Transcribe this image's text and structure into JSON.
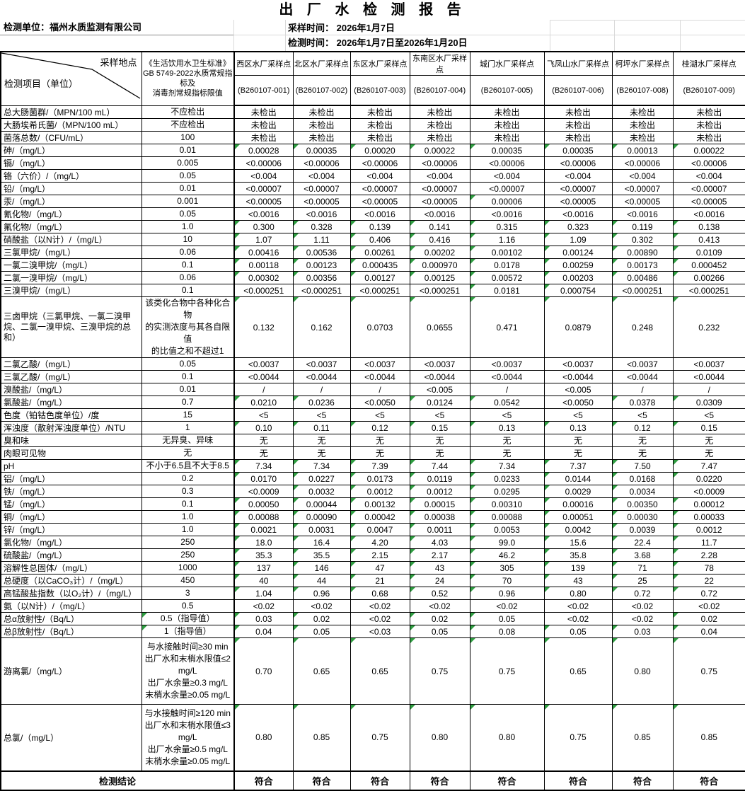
{
  "title": "出 厂 水  检 测 报 告",
  "meta": {
    "unit": "检测单位：福州水质监测有限公司",
    "sampling_time": "采样时间： 2026年1月7日",
    "testing_time": "检测时间： 2026年1月7日至2026年1月20日"
  },
  "header": {
    "corner_top": "采样地点",
    "corner_bottom": "检测项目（单位）",
    "standard": "《生活饮用水卫生标准》\nGB 5749-2022水质常规指标及\n消毒剂常规指标限值",
    "columns": [
      {
        "name": "西区水厂采样点",
        "code": "(B260107-001)"
      },
      {
        "name": "北区水厂采样点",
        "code": "(B260107-002)"
      },
      {
        "name": "东区水厂采样点",
        "code": "(B260107-003)"
      },
      {
        "name": "东南区水厂采样点",
        "code": "(B260107-004)"
      },
      {
        "name": "城门水厂采样点",
        "code": "(B260107-005)"
      },
      {
        "name": "飞凤山水厂采样点",
        "code": "(B260107-006)"
      },
      {
        "name": "柯坪水厂采样点",
        "code": "(B260107-008)"
      },
      {
        "name": "桂湖水厂采样点",
        "code": "(B260107-009)"
      }
    ]
  },
  "rows": [
    {
      "item": "总大肠菌群/（MPN/100 mL）",
      "standard": "不应检出",
      "values": [
        "未检出",
        "未检出",
        "未检出",
        "未检出",
        "未检出",
        "未检出",
        "未检出",
        "未检出"
      ]
    },
    {
      "item": "大肠埃希氏菌/（MPN/100 mL）",
      "standard": "不应检出",
      "values": [
        "未检出",
        "未检出",
        "未检出",
        "未检出",
        "未检出",
        "未检出",
        "未检出",
        "未检出"
      ]
    },
    {
      "item": "菌落总数/（CFU/mL）",
      "standard": "100",
      "values": [
        "未检出",
        "未检出",
        "未检出",
        "未检出",
        "未检出",
        "未检出",
        "未检出",
        "未检出"
      ]
    },
    {
      "item": "砷/（mg/L）",
      "standard": "0.01",
      "values": [
        "0.00028",
        "0.00035",
        "0.00020",
        "0.00022",
        "0.00035",
        "0.00035",
        "0.00013",
        "0.00022"
      ]
    },
    {
      "item": "镉/（mg/L）",
      "standard": "0.005",
      "values": [
        "<0.00006",
        "<0.00006",
        "<0.00006",
        "<0.00006",
        "<0.00006",
        "<0.00006",
        "<0.00006",
        "<0.00006"
      ]
    },
    {
      "item": "铬（六价）/（mg/L）",
      "standard": "0.05",
      "values": [
        "<0.004",
        "<0.004",
        "<0.004",
        "<0.004",
        "<0.004",
        "<0.004",
        "<0.004",
        "<0.004"
      ]
    },
    {
      "item": "铅/（mg/L）",
      "standard": "0.01",
      "values": [
        "<0.00007",
        "<0.00007",
        "<0.00007",
        "<0.00007",
        "<0.00007",
        "<0.00007",
        "<0.00007",
        "<0.00007"
      ]
    },
    {
      "item": "汞/（mg/L）",
      "standard": "0.001",
      "values": [
        "<0.00005",
        "<0.00005",
        "<0.00005",
        "<0.00005",
        "0.00006",
        "<0.00005",
        "<0.00005",
        "<0.00005"
      ]
    },
    {
      "item": "氰化物/（mg/L）",
      "standard": "0.05",
      "values": [
        "<0.0016",
        "<0.0016",
        "<0.0016",
        "<0.0016",
        "<0.0016",
        "<0.0016",
        "<0.0016",
        "<0.0016"
      ]
    },
    {
      "item": "氟化物/（mg/L）",
      "standard": "1.0",
      "values": [
        "0.300",
        "0.328",
        "0.139",
        "0.141",
        "0.315",
        "0.323",
        "0.119",
        "0.138"
      ]
    },
    {
      "item": "硝酸盐（以N计）/（mg/L）",
      "standard": "10",
      "values": [
        "1.07",
        "1.11",
        "0.406",
        "0.416",
        "1.16",
        "1.09",
        "0.302",
        "0.413"
      ]
    },
    {
      "item": "三氯甲烷/（mg/L）",
      "standard": "0.06",
      "values": [
        "0.00416",
        "0.00536",
        "0.00261",
        "0.00202",
        "0.00102",
        "0.00124",
        "0.00890",
        "0.0109"
      ]
    },
    {
      "item": "一氯二溴甲烷/（mg/L）",
      "standard": "0.1",
      "values": [
        "0.00118",
        "0.00123",
        "0.000435",
        "0.000970",
        "0.0178",
        "0.00259",
        "0.00173",
        "0.000452"
      ]
    },
    {
      "item": "二氯一溴甲烷/（mg/L）",
      "standard": "0.06",
      "values": [
        "0.00302",
        "0.00356",
        "0.00127",
        "0.00125",
        "0.00572",
        "0.00203",
        "0.00486",
        "0.00266"
      ]
    },
    {
      "item": "三溴甲烷/（mg/L）",
      "standard": "0.1",
      "values": [
        "<0.000251",
        "<0.000251",
        "<0.000251",
        "<0.000251",
        "0.0181",
        "0.000754",
        "<0.000251",
        "<0.000251"
      ]
    },
    {
      "item": "三卤甲烷（三氯甲烷、一氯二溴甲烷、二氯一溴甲烷、三溴甲烷的总和）",
      "standard": "该类化合物中各种化合物\n的实测浓度与其各自限值\n的比值之和不超过1",
      "values": [
        "0.132",
        "0.162",
        "0.0703",
        "0.0655",
        "0.471",
        "0.0879",
        "0.248",
        "0.232"
      ]
    },
    {
      "item": "二氯乙酸/（mg/L）",
      "standard": "0.05",
      "values": [
        "<0.0037",
        "<0.0037",
        "<0.0037",
        "<0.0037",
        "<0.0037",
        "<0.0037",
        "<0.0037",
        "<0.0037"
      ]
    },
    {
      "item": "三氯乙酸/（mg/L）",
      "standard": "0.1",
      "values": [
        "<0.0044",
        "<0.0044",
        "<0.0044",
        "<0.0044",
        "<0.0044",
        "<0.0044",
        "<0.0044",
        "<0.0044"
      ]
    },
    {
      "item": "溴酸盐/（mg/L）",
      "standard": "0.01",
      "values": [
        "/",
        "/",
        "/",
        "<0.005",
        "/",
        "<0.005",
        "/",
        "/"
      ]
    },
    {
      "item": "氯酸盐/（mg/L）",
      "standard": "0.7",
      "values": [
        "0.0210",
        "0.0236",
        "<0.0050",
        "0.0124",
        "0.0542",
        "<0.0050",
        "0.0378",
        "0.0309"
      ]
    },
    {
      "item": "色度（铂钴色度单位）/度",
      "standard": "15",
      "values": [
        "<5",
        "<5",
        "<5",
        "<5",
        "<5",
        "<5",
        "<5",
        "<5"
      ]
    },
    {
      "item": "浑浊度（散射浑浊度单位）/NTU",
      "standard": "1",
      "values": [
        "0.10",
        "0.11",
        "0.12",
        "0.15",
        "0.13",
        "0.13",
        "0.12",
        "0.15"
      ]
    },
    {
      "item": "臭和味",
      "standard": "无异臭、异味",
      "values": [
        "无",
        "无",
        "无",
        "无",
        "无",
        "无",
        "无",
        "无"
      ]
    },
    {
      "item": "肉眼可见物",
      "standard": "无",
      "values": [
        "无",
        "无",
        "无",
        "无",
        "无",
        "无",
        "无",
        "无"
      ]
    },
    {
      "item": "pH",
      "standard": "不小于6.5且不大于8.5",
      "values": [
        "7.34",
        "7.34",
        "7.39",
        "7.44",
        "7.34",
        "7.37",
        "7.50",
        "7.47"
      ]
    },
    {
      "item": "铝/（mg/L）",
      "standard": "0.2",
      "values": [
        "0.0170",
        "0.0227",
        "0.0173",
        "0.0119",
        "0.0233",
        "0.0144",
        "0.0168",
        "0.0220"
      ]
    },
    {
      "item": "铁/（mg/L）",
      "standard": "0.3",
      "values": [
        "<0.0009",
        "0.0032",
        "0.0012",
        "0.0012",
        "0.0295",
        "0.0029",
        "0.0034",
        "<0.0009"
      ]
    },
    {
      "item": "锰/（mg/L）",
      "standard": "0.1",
      "values": [
        "0.00050",
        "0.00044",
        "0.00132",
        "0.00015",
        "0.00310",
        "0.00016",
        "0.00350",
        "0.00012"
      ]
    },
    {
      "item": "铜/（mg/L）",
      "standard": "1.0",
      "values": [
        "0.00088",
        "0.00090",
        "0.00042",
        "0.00038",
        "0.00088",
        "0.00051",
        "0.00030",
        "0.00033"
      ]
    },
    {
      "item": "锌/（mg/L）",
      "standard": "1.0",
      "values": [
        "0.0021",
        "0.0031",
        "0.0047",
        "0.0011",
        "0.0053",
        "0.0042",
        "0.0039",
        "0.0012"
      ]
    },
    {
      "item": "氯化物/（mg/L）",
      "standard": "250",
      "values": [
        "18.0",
        "16.4",
        "4.20",
        "4.03",
        "99.0",
        "15.6",
        "22.4",
        "11.7"
      ]
    },
    {
      "item": "硫酸盐/（mg/L）",
      "standard": "250",
      "values": [
        "35.3",
        "35.5",
        "2.15",
        "2.17",
        "46.2",
        "35.8",
        "3.68",
        "2.28"
      ]
    },
    {
      "item": "溶解性总固体/（mg/L）",
      "standard": "1000",
      "values": [
        "137",
        "146",
        "47",
        "43",
        "305",
        "139",
        "71",
        "78"
      ]
    },
    {
      "item": "总硬度（以CaCO₃计）/（mg/L）",
      "standard": "450",
      "values": [
        "40",
        "44",
        "21",
        "24",
        "70",
        "43",
        "25",
        "22"
      ]
    },
    {
      "item": "高锰酸盐指数（以O₂计）/（mg/L）",
      "standard": "3",
      "values": [
        "1.04",
        "0.96",
        "0.68",
        "0.52",
        "0.96",
        "0.80",
        "0.72",
        "0.72"
      ]
    },
    {
      "item": "氨（以N计）/（mg/L）",
      "standard": "0.5",
      "values": [
        "<0.02",
        "<0.02",
        "<0.02",
        "<0.02",
        "<0.02",
        "<0.02",
        "<0.02",
        "<0.02"
      ]
    },
    {
      "item": "总α放射性/（Bq/L）",
      "standard": "0.5（指导值）",
      "values": [
        "0.03",
        "0.02",
        "<0.02",
        "0.02",
        "0.05",
        "<0.02",
        "<0.02",
        "0.02"
      ]
    },
    {
      "item": "总β放射性/（Bq/L）",
      "standard": "1（指导值）",
      "values": [
        "0.04",
        "0.05",
        "<0.03",
        "0.05",
        "0.08",
        "0.05",
        "0.03",
        "0.04"
      ]
    },
    {
      "item": "游离氯/（mg/L）",
      "standard": "与水接触时间≥30 min\n出厂水和末梢水限值≤2\nmg/L\n出厂水余量≥0.3 mg/L\n末梢水余量≥0.05 mg/L",
      "values": [
        "0.70",
        "0.65",
        "0.65",
        "0.75",
        "0.75",
        "0.65",
        "0.80",
        "0.75"
      ]
    },
    {
      "item": "总氯/（mg/L）",
      "standard": "与水接触时间≥120 min\n出厂水和末梢水限值≤3\nmg/L\n出厂水余量≥0.5 mg/L\n末梢水余量≥0.05 mg/L",
      "values": [
        "0.80",
        "0.85",
        "0.75",
        "0.80",
        "0.80",
        "0.75",
        "0.85",
        "0.85"
      ]
    }
  ],
  "conclusion": {
    "label": "检测结论",
    "values": [
      "符合",
      "符合",
      "符合",
      "符合",
      "符合",
      "符合",
      "符合",
      "符合"
    ]
  },
  "colors": {
    "error_triangle_green": "#2f9e41",
    "border_black": "#000000",
    "gridline_gray": "#d9d9d9"
  }
}
